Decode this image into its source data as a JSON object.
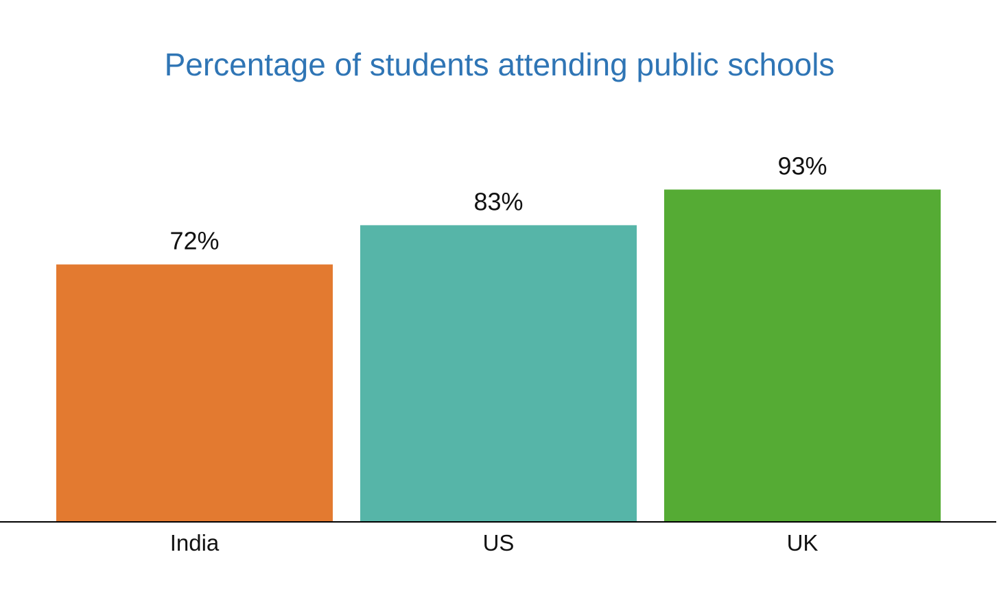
{
  "colors": {
    "title": "#2f75b5",
    "axis": "#000000",
    "bars": [
      "#e37a30",
      "#56b5a8",
      "#55ab34"
    ]
  },
  "chart_data": {
    "type": "bar",
    "title": "Percentage of students attending public schools",
    "xlabel": "",
    "ylabel": "",
    "categories": [
      "India",
      "US",
      "UK"
    ],
    "values": [
      72,
      83,
      93
    ],
    "data_labels": [
      "72%",
      "83%",
      "93%"
    ],
    "ylim": [
      0,
      100
    ],
    "grid": false,
    "legend": "none"
  }
}
